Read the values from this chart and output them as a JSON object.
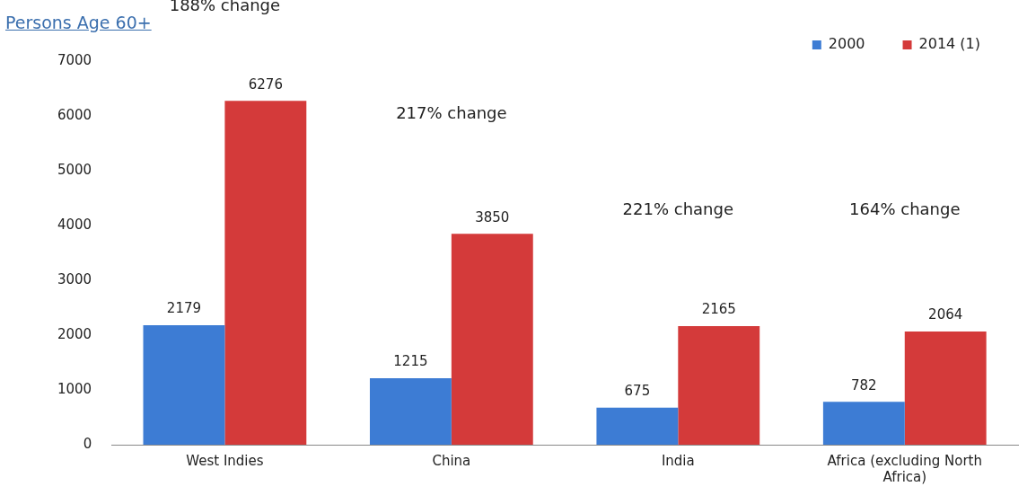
{
  "chart_data": {
    "type": "bar",
    "title": "Persons Age 60+",
    "categories": [
      "West Indies",
      "China",
      "India",
      "Africa (excluding North Africa)"
    ],
    "series": [
      {
        "name": "2000",
        "color": "#3d7cd4",
        "values": [
          2179,
          1215,
          675,
          782
        ]
      },
      {
        "name": "2014 (1)",
        "color": "#d43a3a",
        "values": [
          6276,
          3850,
          2165,
          2064
        ]
      }
    ],
    "ylim": [
      0,
      7000
    ],
    "yticks": [
      0,
      1000,
      2000,
      3000,
      4000,
      5000,
      6000,
      7000
    ],
    "grid": false,
    "legend": "top right",
    "data_labels": true,
    "annotations": [
      "188% change",
      "217% change",
      "221% change",
      "164% change"
    ]
  }
}
